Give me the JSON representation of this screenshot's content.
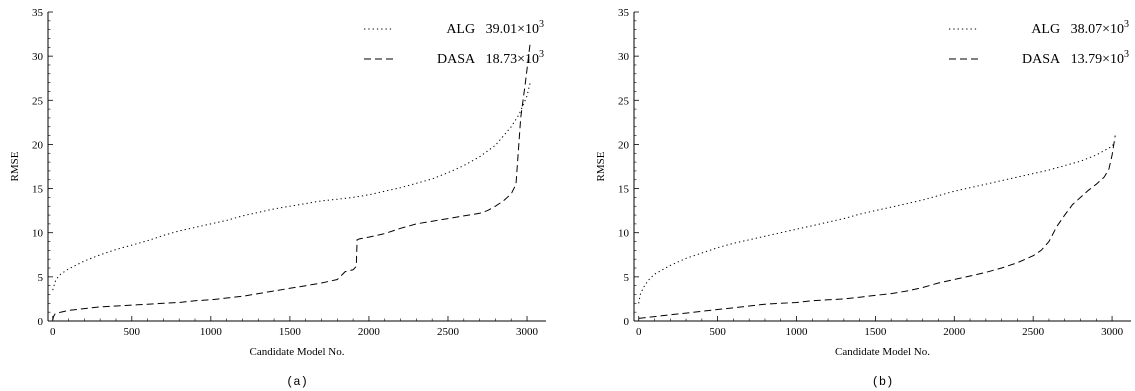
{
  "chart_data": [
    {
      "type": "line",
      "panel_label": "(a)",
      "xlabel": "Candidate Model No.",
      "ylabel": "RMSE",
      "xlim": [
        -30,
        3120
      ],
      "ylim": [
        0,
        35
      ],
      "xticks": [
        "0",
        "500",
        "1000",
        "1500",
        "2000",
        "2500",
        "3000"
      ],
      "yticks": [
        "0",
        "5",
        "10",
        "15",
        "20",
        "25",
        "30",
        "35"
      ],
      "grid": false,
      "legend_position": "top-right",
      "series": [
        {
          "name": "ALG",
          "legend_value": "39.01",
          "legend_exp": "3",
          "style": "dotted",
          "x": [
            0,
            20,
            50,
            100,
            200,
            300,
            400,
            500,
            600,
            700,
            800,
            900,
            1000,
            1100,
            1200,
            1300,
            1400,
            1500,
            1600,
            1700,
            1800,
            1900,
            2000,
            2100,
            2200,
            2300,
            2400,
            2500,
            2600,
            2700,
            2800,
            2900,
            2950,
            3000,
            3020
          ],
          "y": [
            3.5,
            4.7,
            5.3,
            5.9,
            6.8,
            7.5,
            8.1,
            8.6,
            9.1,
            9.7,
            10.2,
            10.6,
            11.0,
            11.4,
            11.9,
            12.3,
            12.7,
            13.0,
            13.3,
            13.6,
            13.8,
            14.0,
            14.3,
            14.7,
            15.1,
            15.6,
            16.1,
            16.8,
            17.6,
            18.6,
            19.9,
            22.0,
            23.4,
            25.5,
            27.0
          ]
        },
        {
          "name": "DASA",
          "legend_value": "18.73",
          "legend_exp": "3",
          "style": "dashed",
          "x": [
            0,
            5,
            15,
            50,
            100,
            200,
            300,
            400,
            500,
            600,
            700,
            800,
            900,
            1000,
            1100,
            1200,
            1300,
            1400,
            1500,
            1600,
            1700,
            1800,
            1850,
            1900,
            1920,
            1925,
            1940,
            2000,
            2050,
            2100,
            2200,
            2300,
            2400,
            2500,
            2600,
            2700,
            2750,
            2800,
            2850,
            2900,
            2930,
            2960,
            2990,
            3010,
            3020
          ],
          "y": [
            0.1,
            0.5,
            0.8,
            1.0,
            1.2,
            1.4,
            1.6,
            1.7,
            1.8,
            1.9,
            2.0,
            2.1,
            2.3,
            2.4,
            2.6,
            2.8,
            3.1,
            3.4,
            3.7,
            4.0,
            4.3,
            4.7,
            5.6,
            5.8,
            6.2,
            9.2,
            9.3,
            9.5,
            9.7,
            9.9,
            10.5,
            11.0,
            11.3,
            11.6,
            11.9,
            12.2,
            12.5,
            13.0,
            13.6,
            14.4,
            15.5,
            23.0,
            27.0,
            30.0,
            31.5
          ]
        }
      ]
    },
    {
      "type": "line",
      "panel_label": "(b)",
      "xlabel": "Candidate Model No.",
      "ylabel": "RMSE",
      "xlim": [
        -30,
        3120
      ],
      "ylim": [
        0,
        35
      ],
      "xticks": [
        "0",
        "500",
        "1000",
        "1500",
        "2000",
        "2500",
        "3000"
      ],
      "yticks": [
        "0",
        "5",
        "10",
        "15",
        "20",
        "25",
        "30",
        "35"
      ],
      "grid": false,
      "legend_position": "top-right",
      "series": [
        {
          "name": "ALG",
          "legend_value": "38.07",
          "legend_exp": "3",
          "style": "dotted",
          "x": [
            0,
            10,
            30,
            60,
            100,
            200,
            300,
            400,
            500,
            600,
            700,
            800,
            900,
            1000,
            1100,
            1200,
            1300,
            1400,
            1500,
            1600,
            1700,
            1800,
            1900,
            2000,
            2100,
            2200,
            2300,
            2400,
            2500,
            2600,
            2700,
            2800,
            2900,
            2950,
            3000,
            3020
          ],
          "y": [
            2.0,
            3.0,
            3.8,
            4.6,
            5.3,
            6.3,
            7.1,
            7.7,
            8.3,
            8.8,
            9.2,
            9.6,
            10.0,
            10.4,
            10.8,
            11.2,
            11.6,
            12.1,
            12.5,
            12.9,
            13.3,
            13.7,
            14.2,
            14.7,
            15.1,
            15.5,
            15.9,
            16.3,
            16.7,
            17.1,
            17.6,
            18.1,
            18.8,
            19.3,
            19.8,
            20.3
          ]
        },
        {
          "name": "DASA",
          "legend_value": "13.79",
          "legend_exp": "3",
          "style": "dashed",
          "x": [
            0,
            100,
            200,
            300,
            400,
            500,
            600,
            700,
            800,
            900,
            1000,
            1100,
            1200,
            1300,
            1400,
            1500,
            1600,
            1700,
            1800,
            1900,
            2000,
            2100,
            2200,
            2300,
            2400,
            2500,
            2550,
            2600,
            2650,
            2700,
            2750,
            2800,
            2850,
            2900,
            2950,
            2980,
            3000,
            3020
          ],
          "y": [
            0.3,
            0.5,
            0.7,
            0.9,
            1.1,
            1.3,
            1.5,
            1.7,
            1.9,
            2.0,
            2.1,
            2.3,
            2.4,
            2.5,
            2.7,
            2.9,
            3.1,
            3.4,
            3.8,
            4.3,
            4.7,
            5.1,
            5.5,
            6.0,
            6.6,
            7.4,
            8.0,
            9.0,
            10.7,
            12.0,
            13.2,
            14.0,
            14.8,
            15.5,
            16.3,
            17.2,
            18.8,
            21.0
          ]
        }
      ]
    }
  ]
}
